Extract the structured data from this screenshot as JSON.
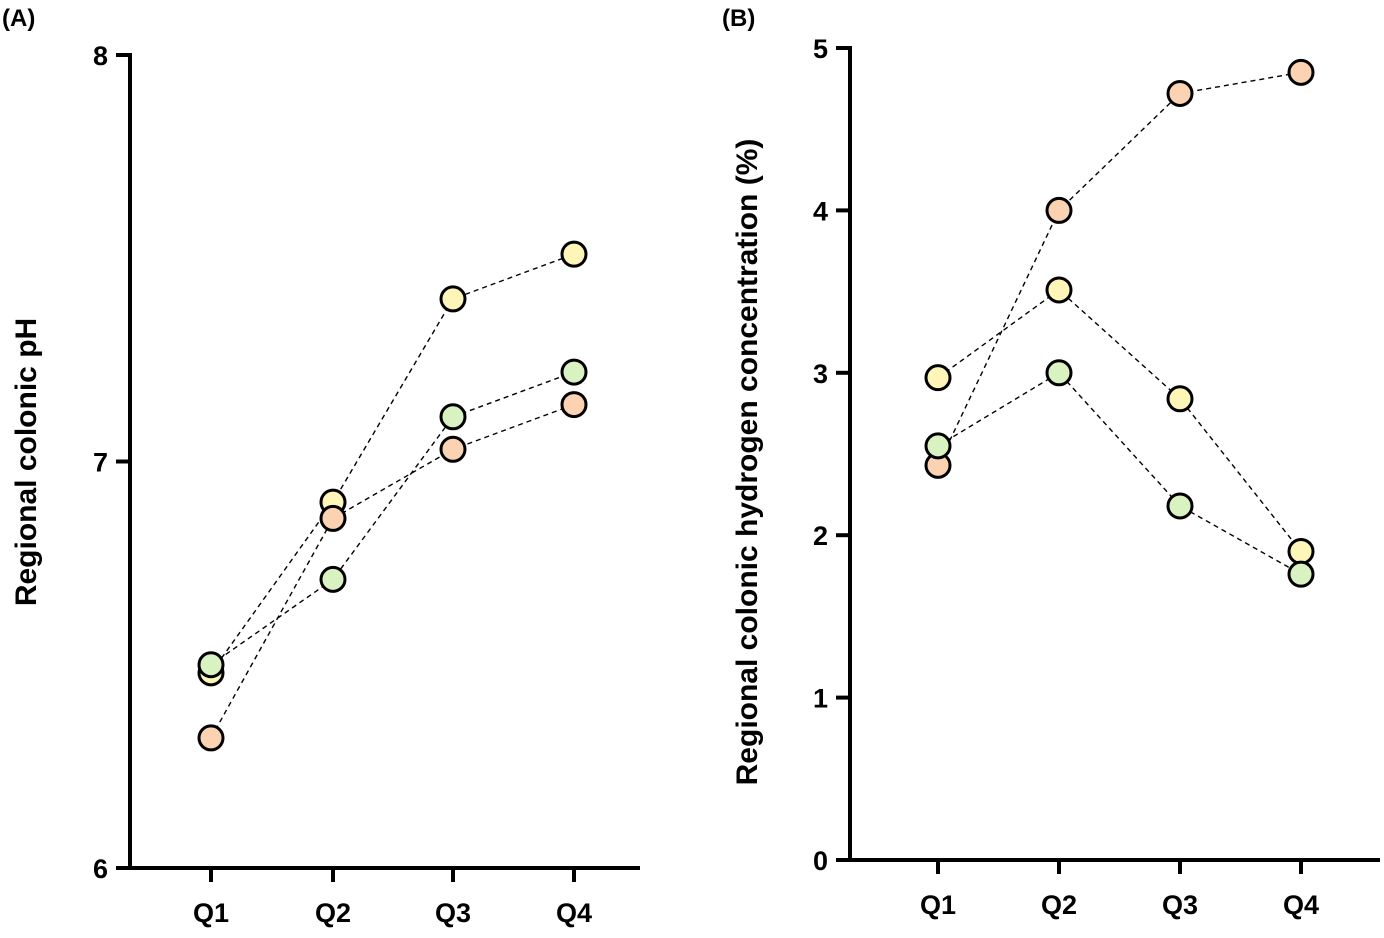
{
  "chart_data": [
    {
      "panel_label": "(A)",
      "type": "line",
      "xlabel": "",
      "ylabel": "Regional colonic pH",
      "categories": [
        "Q1",
        "Q2",
        "Q3",
        "Q4"
      ],
      "ylim": [
        6,
        8
      ],
      "yticks": [
        6,
        7,
        8
      ],
      "grid": false,
      "legend": "none",
      "series": [
        {
          "color": "#fdf6b8",
          "values": [
            6.48,
            6.9,
            7.4,
            7.51
          ]
        },
        {
          "color": "#fbd3b3",
          "values": [
            6.32,
            6.86,
            7.03,
            7.14
          ]
        },
        {
          "color": "#d9f2c2",
          "values": [
            6.5,
            6.71,
            7.11,
            7.22
          ]
        }
      ]
    },
    {
      "panel_label": "(B)",
      "type": "line",
      "xlabel": "",
      "ylabel": "Regional colonic hydrogen concentration (%)",
      "categories": [
        "Q1",
        "Q2",
        "Q3",
        "Q4"
      ],
      "ylim": [
        0,
        5
      ],
      "yticks": [
        0,
        1,
        2,
        3,
        4,
        5
      ],
      "grid": false,
      "legend": "none",
      "series": [
        {
          "color": "#fbd3b3",
          "values": [
            2.43,
            4.0,
            4.72,
            4.85
          ]
        },
        {
          "color": "#fdf6b8",
          "values": [
            2.97,
            3.51,
            2.84,
            1.9
          ]
        },
        {
          "color": "#d9f2c2",
          "values": [
            2.55,
            3.0,
            2.18,
            1.76
          ]
        }
      ]
    }
  ]
}
